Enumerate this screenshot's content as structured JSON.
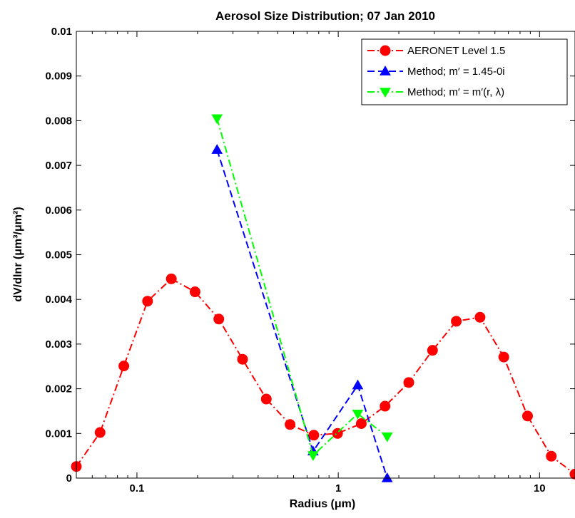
{
  "chart_data": {
    "type": "line",
    "title": "Aerosol Size Distribution; 07 Jan 2010",
    "xlabel": "Radius (μm)",
    "ylabel": "dV/dlnr (μm³/μm²)",
    "xscale": "log",
    "xlim": [
      0.05,
      15
    ],
    "ylim": [
      0,
      0.01
    ],
    "x_ticks": [
      0.1,
      1,
      10
    ],
    "x_tick_labels": [
      "0.1",
      "1",
      "10"
    ],
    "y_ticks": [
      0,
      0.001,
      0.002,
      0.003,
      0.004,
      0.005,
      0.006,
      0.007,
      0.008,
      0.009,
      0.01
    ],
    "y_tick_labels": [
      "0",
      "0.001",
      "0.002",
      "0.003",
      "0.004",
      "0.005",
      "0.006",
      "0.007",
      "0.008",
      "0.009",
      "0.01"
    ],
    "grid": false,
    "legend_position": "top-right",
    "series": [
      {
        "name": "AERONET Level 1.5",
        "color": "#ff0000",
        "line_style": "dash-dot",
        "marker": "circle",
        "x": [
          0.05,
          0.0656,
          0.0861,
          0.1129,
          0.1482,
          0.1944,
          0.2551,
          0.3347,
          0.4391,
          0.5762,
          0.756,
          0.992,
          1.3016,
          1.7079,
          2.241,
          2.9405,
          3.8583,
          5.0626,
          6.6428,
          8.7163,
          11.4369,
          15.0
        ],
        "y": [
          0.00026,
          0.00102,
          0.00251,
          0.00396,
          0.00446,
          0.00417,
          0.00356,
          0.00266,
          0.00177,
          0.0012,
          0.00096,
          0.001,
          0.00122,
          0.00161,
          0.00214,
          0.00286,
          0.00351,
          0.0036,
          0.00271,
          0.00139,
          0.00049,
          9e-05
        ]
      },
      {
        "name": "Method; m′ = 1.45-0i",
        "color": "#0000ff",
        "line_style": "dashed",
        "marker": "triangle-up",
        "x": [
          0.25,
          0.75,
          1.25,
          1.75
        ],
        "y": [
          0.00735,
          0.0006,
          0.00208,
          0.0
        ]
      },
      {
        "name": "Method; m′ = m′(r, λ)",
        "color": "#00ff00",
        "line_style": "dash-dot",
        "marker": "triangle-down",
        "x": [
          0.25,
          0.75,
          1.25,
          1.75
        ],
        "y": [
          0.00805,
          0.00051,
          0.00144,
          0.00093
        ]
      }
    ]
  }
}
